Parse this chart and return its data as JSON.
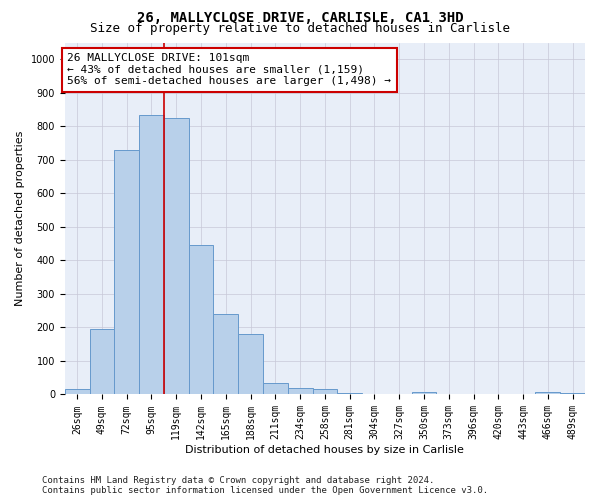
{
  "title1": "26, MALLYCLOSE DRIVE, CARLISLE, CA1 3HD",
  "title2": "Size of property relative to detached houses in Carlisle",
  "xlabel": "Distribution of detached houses by size in Carlisle",
  "ylabel": "Number of detached properties",
  "bar_labels": [
    "26sqm",
    "49sqm",
    "72sqm",
    "95sqm",
    "119sqm",
    "142sqm",
    "165sqm",
    "188sqm",
    "211sqm",
    "234sqm",
    "258sqm",
    "281sqm",
    "304sqm",
    "327sqm",
    "350sqm",
    "373sqm",
    "396sqm",
    "420sqm",
    "443sqm",
    "466sqm",
    "489sqm"
  ],
  "bar_heights": [
    15,
    195,
    730,
    835,
    825,
    445,
    240,
    180,
    35,
    20,
    15,
    5,
    0,
    0,
    8,
    0,
    0,
    0,
    0,
    8,
    5
  ],
  "bar_color": "#b8d0ea",
  "bar_edgecolor": "#6699cc",
  "vline_x": 3.5,
  "vline_color": "#cc0000",
  "annotation_line1": "26 MALLYCLOSE DRIVE: 101sqm",
  "annotation_line2": "← 43% of detached houses are smaller (1,159)",
  "annotation_line3": "56% of semi-detached houses are larger (1,498) →",
  "annotation_box_color": "#ffffff",
  "annotation_box_edgecolor": "#cc0000",
  "ylim": [
    0,
    1050
  ],
  "yticks": [
    0,
    100,
    200,
    300,
    400,
    500,
    600,
    700,
    800,
    900,
    1000
  ],
  "ax_facecolor": "#e8eef8",
  "background_color": "#ffffff",
  "grid_color": "#c8c8d8",
  "footer_text": "Contains HM Land Registry data © Crown copyright and database right 2024.\nContains public sector information licensed under the Open Government Licence v3.0.",
  "title1_fontsize": 10,
  "title2_fontsize": 9,
  "xlabel_fontsize": 8,
  "ylabel_fontsize": 8,
  "tick_fontsize": 7,
  "annot_fontsize": 8,
  "footer_fontsize": 6.5
}
